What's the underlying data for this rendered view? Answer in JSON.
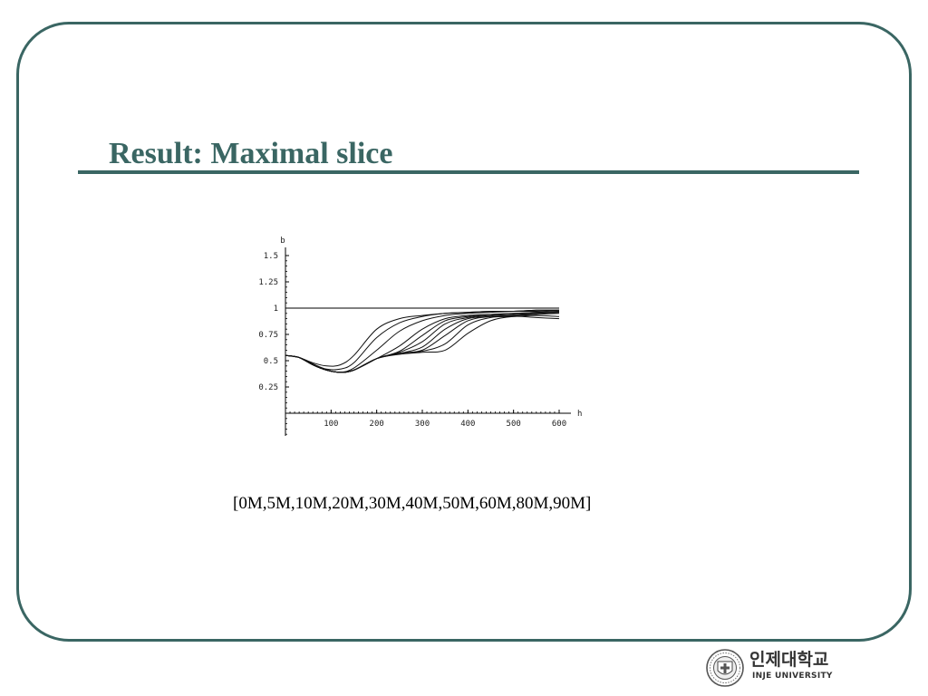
{
  "slide": {
    "title": "Result: Maximal slice",
    "caption": "[0M,5M,10M,20M,30M,40M,50M,60M,80M,90M]"
  },
  "colors": {
    "accent": "#3a6663",
    "curve": "#111111"
  },
  "logo": {
    "name_korean": "인제대학교",
    "name_english": "INJE UNIVERSITY",
    "icon": "university-seal-icon"
  },
  "chart_data": {
    "type": "line",
    "xlabel": "h",
    "ylabel": "b",
    "xlim": [
      0,
      600
    ],
    "ylim": [
      0,
      1.5
    ],
    "x_ticks": [
      100,
      200,
      300,
      400,
      500,
      600
    ],
    "x_tick_labels": [
      "100",
      "200",
      "300",
      "400",
      "500",
      "600"
    ],
    "y_ticks": [
      0.25,
      0.5,
      0.75,
      1,
      1.25,
      1.5
    ],
    "y_tick_labels": [
      "0.25",
      "0.5",
      "0.75",
      "1",
      "1.25",
      "1.5"
    ],
    "grid": false,
    "reference_line": {
      "y": 1.0
    },
    "series": [
      {
        "x": [
          0,
          30,
          60,
          90,
          120,
          150,
          200,
          250,
          300,
          350,
          400,
          450,
          500,
          550,
          600
        ],
        "values": [
          0.55,
          0.53,
          0.48,
          0.45,
          0.46,
          0.55,
          0.8,
          0.9,
          0.93,
          0.95,
          0.96,
          0.97,
          0.97,
          0.98,
          0.98
        ]
      },
      {
        "x": [
          0,
          30,
          60,
          90,
          120,
          150,
          200,
          250,
          300,
          350,
          400,
          450,
          500,
          550,
          600
        ],
        "values": [
          0.55,
          0.53,
          0.47,
          0.42,
          0.42,
          0.48,
          0.72,
          0.86,
          0.92,
          0.95,
          0.96,
          0.97,
          0.97,
          0.98,
          0.98
        ]
      },
      {
        "x": [
          0,
          30,
          60,
          90,
          120,
          150,
          200,
          250,
          300,
          350,
          400,
          450,
          500,
          550,
          600
        ],
        "values": [
          0.55,
          0.53,
          0.46,
          0.41,
          0.39,
          0.43,
          0.6,
          0.78,
          0.88,
          0.93,
          0.95,
          0.96,
          0.97,
          0.97,
          0.98
        ]
      },
      {
        "x": [
          0,
          30,
          60,
          90,
          120,
          150,
          200,
          250,
          300,
          350,
          400,
          450,
          500,
          550,
          600
        ],
        "values": [
          0.55,
          0.53,
          0.46,
          0.41,
          0.39,
          0.41,
          0.52,
          0.64,
          0.8,
          0.9,
          0.93,
          0.94,
          0.95,
          0.96,
          0.97
        ]
      },
      {
        "x": [
          0,
          30,
          60,
          90,
          120,
          150,
          200,
          250,
          300,
          350,
          400,
          450,
          500,
          550,
          600
        ],
        "values": [
          0.55,
          0.53,
          0.46,
          0.41,
          0.39,
          0.41,
          0.52,
          0.59,
          0.74,
          0.88,
          0.92,
          0.94,
          0.95,
          0.96,
          0.97
        ]
      },
      {
        "x": [
          0,
          30,
          60,
          90,
          120,
          150,
          200,
          250,
          300,
          350,
          400,
          450,
          500,
          550,
          600
        ],
        "values": [
          0.55,
          0.53,
          0.46,
          0.41,
          0.39,
          0.41,
          0.52,
          0.58,
          0.68,
          0.85,
          0.91,
          0.93,
          0.94,
          0.95,
          0.96
        ]
      },
      {
        "x": [
          0,
          30,
          60,
          90,
          120,
          150,
          200,
          250,
          300,
          350,
          400,
          450,
          500,
          550,
          600
        ],
        "values": [
          0.55,
          0.53,
          0.46,
          0.41,
          0.39,
          0.41,
          0.52,
          0.57,
          0.63,
          0.8,
          0.9,
          0.92,
          0.93,
          0.94,
          0.95
        ]
      },
      {
        "x": [
          0,
          30,
          60,
          90,
          120,
          150,
          200,
          250,
          300,
          350,
          400,
          450,
          500,
          550,
          600
        ],
        "values": [
          0.55,
          0.53,
          0.46,
          0.41,
          0.39,
          0.41,
          0.52,
          0.57,
          0.6,
          0.74,
          0.88,
          0.92,
          0.93,
          0.95,
          0.96
        ]
      },
      {
        "x": [
          0,
          30,
          60,
          90,
          120,
          150,
          200,
          250,
          300,
          350,
          400,
          450,
          500,
          550,
          600
        ],
        "values": [
          0.55,
          0.53,
          0.46,
          0.41,
          0.39,
          0.41,
          0.52,
          0.57,
          0.59,
          0.66,
          0.84,
          0.91,
          0.92,
          0.93,
          0.92
        ]
      },
      {
        "x": [
          0,
          30,
          60,
          90,
          120,
          150,
          200,
          250,
          300,
          350,
          400,
          450,
          500,
          550,
          600
        ],
        "values": [
          0.55,
          0.53,
          0.46,
          0.41,
          0.39,
          0.41,
          0.52,
          0.56,
          0.58,
          0.6,
          0.76,
          0.88,
          0.92,
          0.91,
          0.9
        ]
      }
    ]
  }
}
